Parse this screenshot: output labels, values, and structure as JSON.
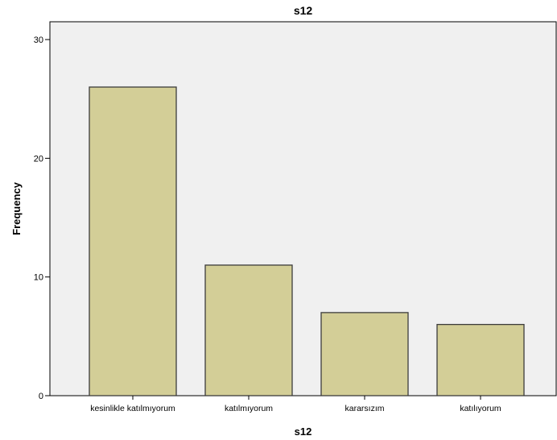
{
  "chart_data": {
    "type": "bar",
    "title": "s12",
    "xlabel": "s12",
    "ylabel": "Frequency",
    "categories": [
      "kesinlikle katılmıyorum",
      "katılmıyorum",
      "kararsızım",
      "katılıyorum"
    ],
    "values": [
      26,
      11,
      7,
      6
    ],
    "ylim": [
      0,
      31.5
    ],
    "yticks": [
      0,
      10,
      20,
      30
    ],
    "grid": false,
    "legend": "none",
    "colors": {
      "plot_background": "#f0f0f0",
      "bar_fill": "#d3ce97",
      "bar_stroke": "#3c3c3c",
      "frame": "#000000"
    }
  }
}
